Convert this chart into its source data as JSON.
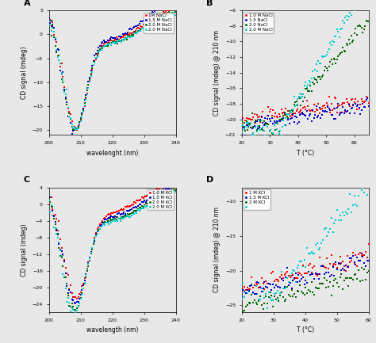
{
  "panel_A": {
    "label": "A",
    "xlabel": "wavelenght (nm)",
    "ylabel": "CD signal (mdeg)",
    "xlim": [
      200,
      240
    ],
    "ylim": [
      -21,
      5
    ],
    "xticks": [
      200,
      205,
      210,
      215,
      220,
      225,
      230,
      235,
      240
    ],
    "yticks": [
      -20,
      -15,
      -10,
      -5,
      0,
      5
    ],
    "legend": [
      "1M NaCl",
      "1.5 M NaCl",
      "2.0 M NaCl",
      "2.0 M NaCl"
    ],
    "colors": [
      "#ff0000",
      "#0000cc",
      "#006600",
      "#00cccc"
    ]
  },
  "panel_B": {
    "label": "B",
    "xlabel": "T (°C)",
    "ylabel": "CD signal (mdeg) @ 210 nm",
    "xlim": [
      20,
      65
    ],
    "ylim": [
      -22,
      -6
    ],
    "xticks": [
      20,
      30,
      40,
      50,
      60
    ],
    "yticks": [
      -22,
      -20,
      -18,
      -16,
      -14,
      -12,
      -10,
      -8,
      -6
    ],
    "legend": [
      "1.0 M NaCl",
      "1.5 NaCl",
      "2.0 NaCl",
      "2.0 M NaCl"
    ],
    "colors": [
      "#ff0000",
      "#0000cc",
      "#006600",
      "#00cccc"
    ]
  },
  "panel_C": {
    "label": "C",
    "xlabel": "wavelength (nm)",
    "ylabel": "CD signal (mdeg)",
    "xlim": [
      200,
      240
    ],
    "ylim": [
      -26,
      4
    ],
    "xticks": [
      200,
      205,
      210,
      215,
      220,
      225,
      230,
      235,
      240
    ],
    "yticks": [
      -24,
      -20,
      -16,
      -12,
      -8,
      -4,
      0,
      4
    ],
    "legend": [
      "1.0 M KCl",
      "1.5 M KCl",
      "2.0 M KCl",
      "2.0 M KCl"
    ],
    "colors": [
      "#ff0000",
      "#0000cc",
      "#006600",
      "#00cccc"
    ]
  },
  "panel_D": {
    "label": "D",
    "xlabel": "T (°C)",
    "ylabel": "CD signal (mdeg) @ 210 nm",
    "xlim": [
      20,
      60
    ],
    "ylim": [
      -26,
      -8
    ],
    "xticks": [
      20,
      30,
      40,
      50,
      60
    ],
    "yticks": [
      -25,
      -20,
      -15,
      -10
    ],
    "legend": [
      "1 M KCl",
      "1.5 M KCl",
      "2 M KCl",
      ""
    ],
    "colors": [
      "#ff0000",
      "#0000cc",
      "#006600",
      "#00cccc"
    ]
  },
  "bg_color": "#e8e8e8"
}
